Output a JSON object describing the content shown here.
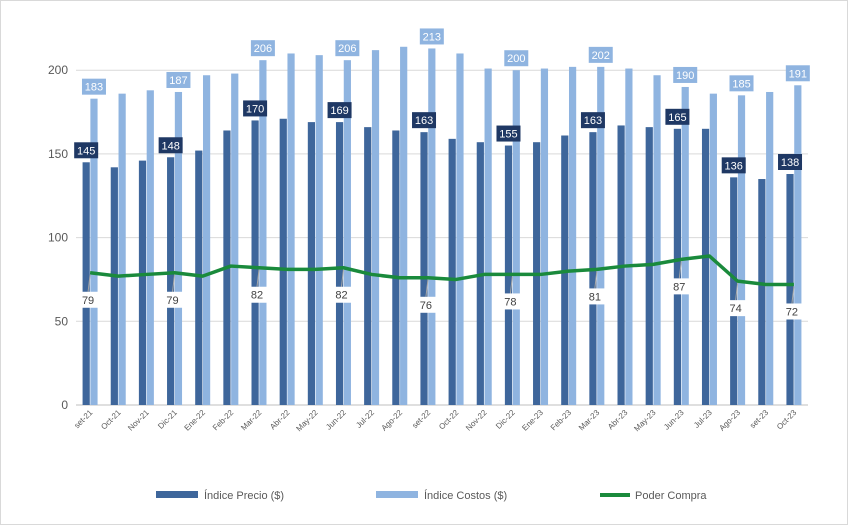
{
  "chart_data": {
    "type": "bar",
    "title": "",
    "xlabel": "",
    "ylabel": "",
    "ylim": [
      0,
      230
    ],
    "yticks": [
      0,
      50,
      100,
      150,
      200
    ],
    "grid": true,
    "legend_position": "bottom",
    "categories": [
      "set-21",
      "Oct-21",
      "Nov-21",
      "Dic-21",
      "Ene-22",
      "Feb-22",
      "Mar-22",
      "Abr-22",
      "May-22",
      "Jun-22",
      "Jul-22",
      "Ago-22",
      "set-22",
      "Oct-22",
      "Nov-22",
      "Dic-22",
      "Ene-23",
      "Feb-23",
      "Mar-23",
      "Abr-23",
      "May-23",
      "Jun-23",
      "Jul-23",
      "Ago-23",
      "set-23",
      "Oct-23"
    ],
    "series": [
      {
        "name": "Índice Precio ($)",
        "kind": "bar",
        "color": "#3e669b",
        "values": [
          145,
          142,
          146,
          148,
          152,
          164,
          170,
          171,
          169,
          169,
          166,
          164,
          163,
          159,
          157,
          155,
          157,
          161,
          163,
          167,
          166,
          165,
          165,
          136,
          135,
          138
        ],
        "labeled_indices": [
          0,
          3,
          6,
          9,
          12,
          15,
          18,
          21,
          23,
          25
        ]
      },
      {
        "name": "Índice Costos ($)",
        "kind": "bar",
        "color": "#8fb4e0",
        "values": [
          183,
          186,
          188,
          187,
          197,
          198,
          206,
          210,
          209,
          206,
          212,
          214,
          213,
          210,
          201,
          200,
          201,
          202,
          202,
          201,
          197,
          190,
          186,
          185,
          187,
          191
        ],
        "labeled_indices": [
          0,
          3,
          6,
          9,
          12,
          15,
          18,
          21,
          23,
          25
        ]
      },
      {
        "name": "Poder Compra",
        "kind": "line",
        "color": "#1a8a3c",
        "values": [
          79,
          77,
          78,
          79,
          77,
          83,
          82,
          81,
          81,
          82,
          78,
          76,
          76,
          75,
          78,
          78,
          78,
          80,
          81,
          83,
          84,
          87,
          89,
          74,
          72,
          72
        ],
        "labeled_indices": [
          0,
          3,
          6,
          9,
          12,
          15,
          18,
          21,
          23,
          25
        ]
      }
    ]
  }
}
